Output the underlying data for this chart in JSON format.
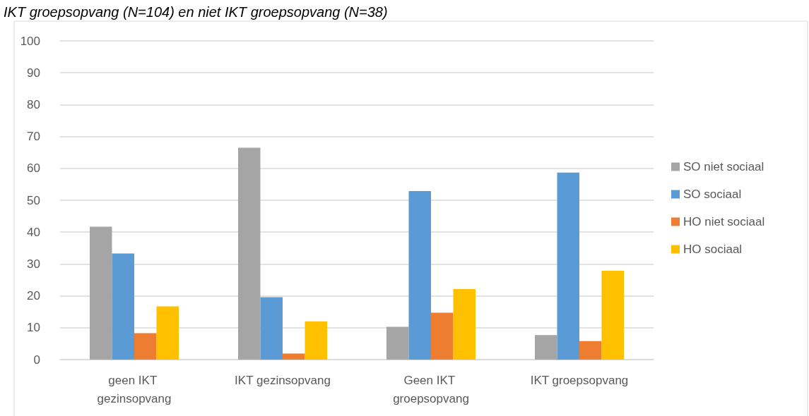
{
  "chart_data": {
    "type": "bar",
    "title": "IKT groepsopvang (N=104) en niet IKT groepsopvang (N=38)",
    "categories": [
      "geen IKT gezinsopvang",
      "IKT gezinsopvang",
      "Geen IKT groepsopvang",
      "IKT groepsopvang"
    ],
    "series": [
      {
        "name": "SO niet sociaal",
        "color": "#a5a5a5",
        "values": [
          41.7,
          66.5,
          10.3,
          7.7
        ]
      },
      {
        "name": "SO sociaal",
        "color": "#5b9bd5",
        "values": [
          33.3,
          19.6,
          52.9,
          58.7
        ]
      },
      {
        "name": "HO niet sociaal",
        "color": "#ed7d31",
        "values": [
          8.3,
          1.9,
          14.7,
          5.8
        ]
      },
      {
        "name": "HO sociaal",
        "color": "#ffc000",
        "values": [
          16.7,
          12.0,
          22.1,
          27.9
        ]
      }
    ],
    "ylim": [
      0,
      100
    ],
    "yticks": [
      0,
      10,
      20,
      30,
      40,
      50,
      60,
      70,
      80,
      90,
      100
    ],
    "grid": "y",
    "legend": "right"
  }
}
